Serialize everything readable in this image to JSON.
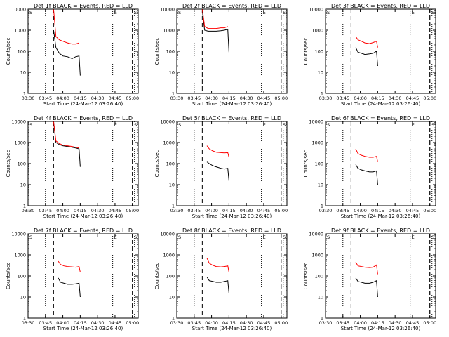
{
  "figure": {
    "colors": {
      "events": "#000000",
      "lld": "#ff0000",
      "background": "#ffffff"
    },
    "x_tick_labels": [
      "03:30",
      "03:45",
      "04:00",
      "04:15",
      "04:30",
      "04:45",
      "05:00"
    ],
    "y_tick_labels": [
      "1",
      "10",
      "100",
      "1000",
      "10000"
    ],
    "xlabel": "Start Time (24-Mar-12 03:26:40)",
    "ylabel": "Counts/sec",
    "letter_marks": [
      "S",
      "E",
      "S"
    ]
  },
  "chart_data": [
    {
      "type": "line",
      "title": "Det 1f BLACK = Events, RED = LLD",
      "xlabel": "Start Time (24-Mar-12 03:26:40)",
      "ylabel": "Counts/sec",
      "ylog": true,
      "ylim": [
        1,
        10000
      ],
      "xlim": [
        "03:30",
        "05:05"
      ],
      "series": [
        {
          "name": "Events",
          "color": "#000000",
          "x": [
            "03:52",
            "03:54",
            "03:57",
            "04:00",
            "04:04",
            "04:08",
            "04:11",
            "04:14",
            "04:15"
          ],
          "y": [
            1000,
            150,
            80,
            60,
            55,
            45,
            55,
            60,
            7
          ]
        },
        {
          "name": "LLD",
          "color": "#ff0000",
          "x": [
            "03:52",
            "03:54",
            "03:57",
            "04:00",
            "04:04",
            "04:08",
            "04:11",
            "04:14"
          ],
          "y": [
            10000,
            500,
            350,
            300,
            250,
            220,
            220,
            250
          ]
        }
      ],
      "vertical_markers": [
        "03:45",
        "03:52",
        "04:43",
        "05:00"
      ]
    },
    {
      "type": "line",
      "title": "Det 2f BLACK = Events, RED = LLD",
      "xlabel": "Start Time (24-Mar-12 03:26:40)",
      "ylabel": "Counts/sec",
      "ylog": true,
      "ylim": [
        1,
        10000
      ],
      "xlim": [
        "03:30",
        "05:05"
      ],
      "series": [
        {
          "name": "Events",
          "color": "#000000",
          "x": [
            "03:52",
            "03:54",
            "03:57",
            "04:00",
            "04:04",
            "04:08",
            "04:11",
            "04:14",
            "04:15"
          ],
          "y": [
            8000,
            1000,
            900,
            900,
            900,
            950,
            1000,
            1100,
            90
          ]
        },
        {
          "name": "LLD",
          "color": "#ff0000",
          "x": [
            "03:52",
            "03:54",
            "03:57",
            "04:00",
            "04:04",
            "04:08",
            "04:11",
            "04:14"
          ],
          "y": [
            10000,
            1500,
            1200,
            1200,
            1200,
            1300,
            1300,
            1500
          ]
        }
      ],
      "vertical_markers": [
        "03:45",
        "03:52",
        "04:43",
        "05:00"
      ]
    },
    {
      "type": "line",
      "title": "Det 3f BLACK = Events, RED = LLD",
      "xlabel": "Start Time (24-Mar-12 03:26:40)",
      "ylabel": "Counts/sec",
      "ylog": true,
      "ylim": [
        1,
        10000
      ],
      "xlim": [
        "03:30",
        "05:05"
      ],
      "series": [
        {
          "name": "Events",
          "color": "#000000",
          "x": [
            "03:56",
            "03:58",
            "04:01",
            "04:04",
            "04:08",
            "04:11",
            "04:14",
            "04:15"
          ],
          "y": [
            150,
            90,
            80,
            70,
            75,
            80,
            100,
            20
          ]
        },
        {
          "name": "LLD",
          "color": "#ff0000",
          "x": [
            "03:56",
            "03:58",
            "04:01",
            "04:04",
            "04:08",
            "04:11",
            "04:14",
            "04:15"
          ],
          "y": [
            500,
            350,
            300,
            250,
            230,
            260,
            300,
            150
          ]
        }
      ],
      "vertical_markers": [
        "03:45",
        "03:52",
        "04:43",
        "05:00"
      ]
    },
    {
      "type": "line",
      "title": "Det 4f BLACK = Events, RED = LLD",
      "xlabel": "Start Time (24-Mar-12 03:26:40)",
      "ylabel": "Counts/sec",
      "ylog": true,
      "ylim": [
        1,
        10000
      ],
      "xlim": [
        "03:30",
        "05:05"
      ],
      "series": [
        {
          "name": "Events",
          "color": "#000000",
          "x": [
            "03:52",
            "03:54",
            "03:57",
            "04:00",
            "04:04",
            "04:08",
            "04:11",
            "04:14",
            "04:15"
          ],
          "y": [
            10000,
            1000,
            800,
            700,
            650,
            600,
            550,
            500,
            70
          ]
        },
        {
          "name": "LLD",
          "color": "#ff0000",
          "x": [
            "03:52",
            "03:54",
            "03:57",
            "04:00",
            "04:04",
            "04:08",
            "04:11",
            "04:14"
          ],
          "y": [
            10000,
            1200,
            900,
            750,
            700,
            650,
            600,
            550
          ]
        }
      ],
      "vertical_markers": [
        "03:45",
        "03:52",
        "04:43",
        "05:00"
      ]
    },
    {
      "type": "line",
      "title": "Det 5f BLACK = Events, RED = LLD",
      "xlabel": "Start Time (24-Mar-12 03:26:40)",
      "ylabel": "Counts/sec",
      "ylog": true,
      "ylim": [
        1,
        10000
      ],
      "xlim": [
        "03:30",
        "05:05"
      ],
      "series": [
        {
          "name": "Events",
          "color": "#000000",
          "x": [
            "03:56",
            "03:58",
            "04:01",
            "04:04",
            "04:08",
            "04:11",
            "04:14",
            "04:15"
          ],
          "y": [
            120,
            100,
            80,
            70,
            60,
            55,
            60,
            15
          ]
        },
        {
          "name": "LLD",
          "color": "#ff0000",
          "x": [
            "03:56",
            "03:58",
            "04:01",
            "04:04",
            "04:08",
            "04:11",
            "04:14",
            "04:15"
          ],
          "y": [
            700,
            500,
            400,
            350,
            330,
            320,
            330,
            200
          ]
        }
      ],
      "vertical_markers": [
        "03:45",
        "03:52",
        "04:43",
        "05:00"
      ]
    },
    {
      "type": "line",
      "title": "Det 6f BLACK = Events, RED = LLD",
      "xlabel": "Start Time (24-Mar-12 03:26:40)",
      "ylabel": "Counts/sec",
      "ylog": true,
      "ylim": [
        1,
        10000
      ],
      "xlim": [
        "03:30",
        "05:05"
      ],
      "series": [
        {
          "name": "Events",
          "color": "#000000",
          "x": [
            "03:56",
            "03:58",
            "04:01",
            "04:04",
            "04:08",
            "04:11",
            "04:14",
            "04:15"
          ],
          "y": [
            90,
            60,
            50,
            45,
            40,
            40,
            45,
            10
          ]
        },
        {
          "name": "LLD",
          "color": "#ff0000",
          "x": [
            "03:56",
            "03:58",
            "04:01",
            "04:04",
            "04:08",
            "04:11",
            "04:14",
            "04:15"
          ],
          "y": [
            500,
            300,
            250,
            220,
            200,
            200,
            220,
            120
          ]
        }
      ],
      "vertical_markers": [
        "03:45",
        "03:52",
        "04:43",
        "05:00"
      ]
    },
    {
      "type": "line",
      "title": "Det 7f BLACK = Events, RED = LLD",
      "xlabel": "Start Time (24-Mar-12 03:26:40)",
      "ylabel": "Counts/sec",
      "ylog": true,
      "ylim": [
        1,
        10000
      ],
      "xlim": [
        "03:30",
        "05:05"
      ],
      "series": [
        {
          "name": "Events",
          "color": "#000000",
          "x": [
            "03:56",
            "03:58",
            "04:01",
            "04:04",
            "04:08",
            "04:11",
            "04:14",
            "04:15"
          ],
          "y": [
            80,
            50,
            45,
            40,
            40,
            42,
            45,
            10
          ]
        },
        {
          "name": "LLD",
          "color": "#ff0000",
          "x": [
            "03:56",
            "03:58",
            "04:01",
            "04:04",
            "04:08",
            "04:11",
            "04:14",
            "04:15"
          ],
          "y": [
            500,
            350,
            300,
            280,
            270,
            260,
            280,
            150
          ]
        }
      ],
      "vertical_markers": [
        "03:45",
        "03:52",
        "04:43",
        "05:00"
      ]
    },
    {
      "type": "line",
      "title": "Det 8f BLACK = Events, RED = LLD",
      "xlabel": "Start Time (24-Mar-12 03:26:40)",
      "ylabel": "Counts/sec",
      "ylog": true,
      "ylim": [
        1,
        10000
      ],
      "xlim": [
        "03:30",
        "05:05"
      ],
      "series": [
        {
          "name": "Events",
          "color": "#000000",
          "x": [
            "03:56",
            "03:58",
            "04:01",
            "04:04",
            "04:08",
            "04:11",
            "04:14",
            "04:15"
          ],
          "y": [
            90,
            60,
            55,
            50,
            50,
            55,
            60,
            15
          ]
        },
        {
          "name": "LLD",
          "color": "#ff0000",
          "x": [
            "03:56",
            "03:58",
            "04:01",
            "04:04",
            "04:08",
            "04:11",
            "04:14",
            "04:15"
          ],
          "y": [
            700,
            400,
            320,
            280,
            270,
            280,
            300,
            150
          ]
        }
      ],
      "vertical_markers": [
        "03:45",
        "03:52",
        "04:43",
        "05:00"
      ]
    },
    {
      "type": "line",
      "title": "Det 9f BLACK = Events, RED = LLD",
      "xlabel": "Start Time (24-Mar-12 03:26:40)",
      "ylabel": "Counts/sec",
      "ylog": true,
      "ylim": [
        1,
        10000
      ],
      "xlim": [
        "03:30",
        "05:05"
      ],
      "series": [
        {
          "name": "Events",
          "color": "#000000",
          "x": [
            "03:56",
            "03:58",
            "04:01",
            "04:04",
            "04:08",
            "04:11",
            "04:14",
            "04:15"
          ],
          "y": [
            80,
            55,
            50,
            45,
            45,
            50,
            60,
            10
          ]
        },
        {
          "name": "LLD",
          "color": "#ff0000",
          "x": [
            "03:56",
            "03:58",
            "04:01",
            "04:04",
            "04:08",
            "04:11",
            "04:14",
            "04:15"
          ],
          "y": [
            450,
            300,
            280,
            260,
            250,
            260,
            330,
            120
          ]
        }
      ],
      "vertical_markers": [
        "03:45",
        "03:52",
        "04:43",
        "05:00"
      ]
    }
  ]
}
